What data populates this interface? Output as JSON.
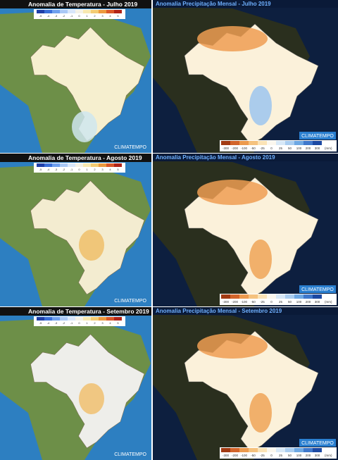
{
  "rows": [
    {
      "temperature": {
        "title": "Anomalia de Temperatura - Julho 2019"
      },
      "precipitation": {
        "title": "Anomalia Precipitação Mensal - Julho 2019"
      }
    },
    {
      "temperature": {
        "title": "Anomalia de Temperatura - Agosto 2019"
      },
      "precipitation": {
        "title": "Anomalia Precipitação Mensal - Agosto 2019"
      }
    },
    {
      "temperature": {
        "title": "Anomalia de Temperatura - Setembro 2019"
      },
      "precipitation": {
        "title": "Anomalia Precipitação Mensal - Setembro 2019"
      }
    }
  ],
  "temperature_scale": {
    "labels": [
      "-5",
      "-4",
      "-3",
      "-2",
      "-1",
      "0",
      "1",
      "2",
      "3",
      "4",
      "5"
    ]
  },
  "precipitation_scale": {
    "labels": [
      "-300",
      "-200",
      "-100",
      "-50",
      "-25",
      "0",
      "25",
      "50",
      "100",
      "200",
      "300"
    ],
    "unit": "(mm)"
  },
  "logo": "CLIMATEMPO"
}
